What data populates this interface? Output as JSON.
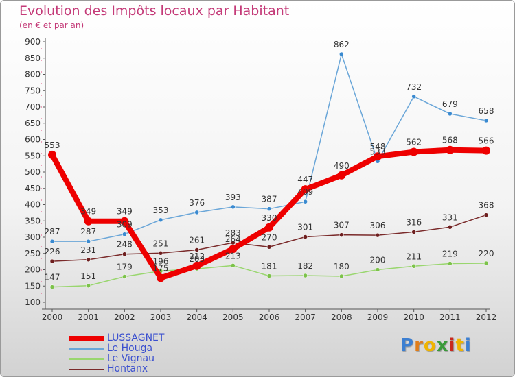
{
  "title": "Evolution des Impôts locaux par Habitant",
  "subtitle": "(en € et par an)",
  "logo": {
    "letters": [
      "P",
      "r",
      "o",
      "x",
      "i",
      "t",
      "i"
    ],
    "colors": [
      "#3c7fd1",
      "#e07d1a",
      "#f0b400",
      "#3a9a3a",
      "#c8281e",
      "#f0b400",
      "#3c7fd1"
    ]
  },
  "chart_data": {
    "type": "line",
    "title": "Evolution des Impôts locaux par Habitant",
    "subtitle": "(en € et par an)",
    "xlabel": "",
    "ylabel": "",
    "ylim": [
      100,
      900
    ],
    "yticks": [
      100,
      150,
      200,
      250,
      300,
      350,
      400,
      450,
      500,
      550,
      600,
      650,
      700,
      750,
      800,
      850,
      900
    ],
    "categories": [
      "2000",
      "2001",
      "2002",
      "2003",
      "2004",
      "2005",
      "2006",
      "2007",
      "2008",
      "2009",
      "2010",
      "2011",
      "2012"
    ],
    "grid": false,
    "legend_position": "bottom-left",
    "series": [
      {
        "name": "Le Vignau",
        "color": "#99d66e",
        "point_color": "#7cc24a",
        "values": [
          147,
          151,
          179,
          196,
          203,
          213,
          181,
          182,
          180,
          200,
          211,
          219,
          220
        ]
      },
      {
        "name": "Hontanx",
        "color": "#7a2a2a",
        "point_color": "#6e1f1f",
        "values": [
          226,
          231,
          248,
          251,
          261,
          283,
          270,
          301,
          307,
          306,
          316,
          331,
          368
        ]
      },
      {
        "name": "Le Houga",
        "color": "#6aa6d8",
        "point_color": "#3a8ad0",
        "values": [
          287,
          287,
          309,
          353,
          376,
          393,
          387,
          409,
          862,
          533,
          732,
          679,
          658
        ]
      },
      {
        "name": "LUSSAGNET",
        "color": "#ee0000",
        "point_color": "#ee0000",
        "values": [
          553,
          349,
          349,
          175,
          212,
          264,
          330,
          447,
          490,
          548,
          562,
          568,
          566
        ]
      }
    ]
  },
  "legend": [
    {
      "name": "LUSSAGNET",
      "color": "#ee0000"
    },
    {
      "name": "Le Houga",
      "color": "#6aa6d8"
    },
    {
      "name": "Le Vignau",
      "color": "#99d66e"
    },
    {
      "name": "Hontanx",
      "color": "#7a2a2a"
    }
  ]
}
